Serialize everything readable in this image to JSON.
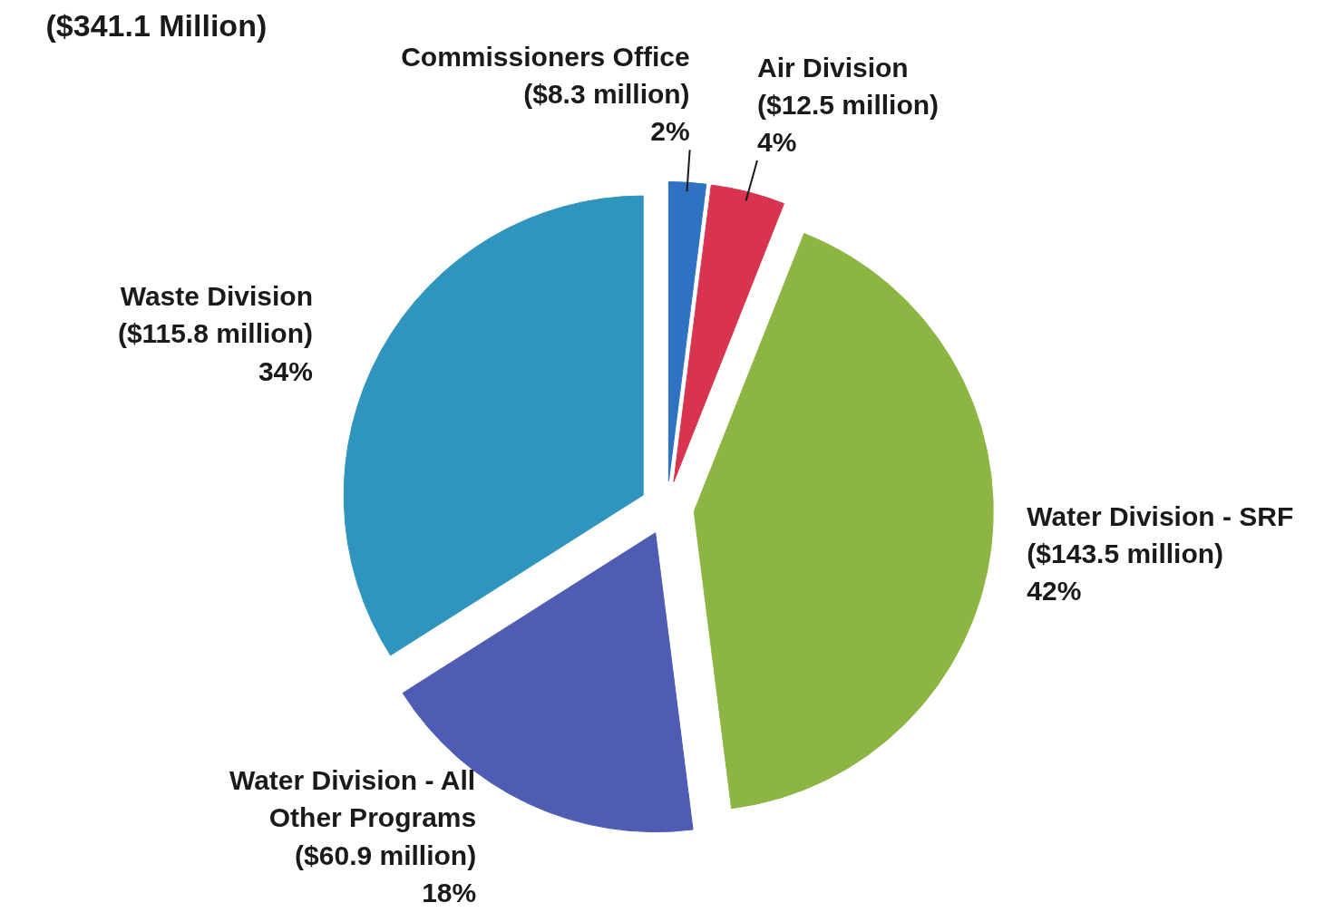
{
  "chart_data": {
    "type": "pie",
    "title": "($341.1 Million)",
    "categories": [
      "Commissioners Office ($8.3 million)",
      "Air Division ($12.5 million)",
      "Water Division - SRF ($143.5 million)",
      "Water Division - All Other Programs ($60.9 million)",
      "Waste Division ($115.8 million)"
    ],
    "values": [
      2,
      4,
      42,
      18,
      34
    ],
    "value_labels": [
      "2%",
      "4%",
      "42%",
      "18%",
      "34%"
    ],
    "colors": [
      "#2f72c4",
      "#d8344f",
      "#8db543",
      "#4f5cb3",
      "#2f94be"
    ]
  }
}
